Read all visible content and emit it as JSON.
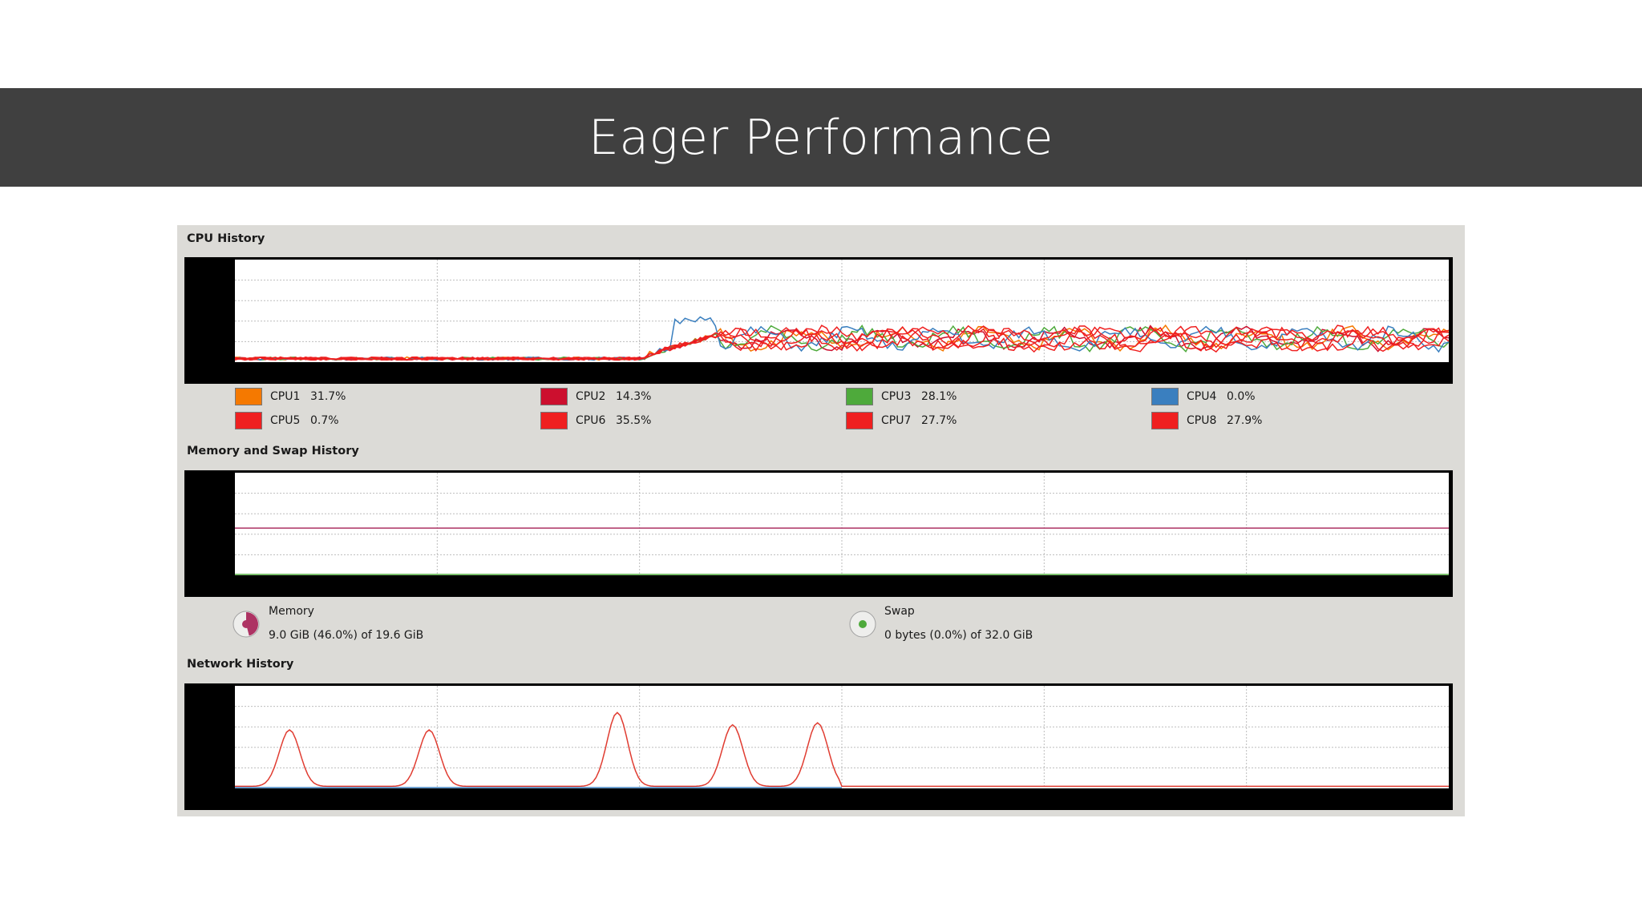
{
  "slide": {
    "title": "Eager Performance"
  },
  "cpu": {
    "section_label": "CPU History",
    "cores": [
      {
        "name": "CPU1",
        "value": "31.7%",
        "color": "#f57900"
      },
      {
        "name": "CPU2",
        "value": "14.3%",
        "color": "#cc0f2e"
      },
      {
        "name": "CPU3",
        "value": "28.1%",
        "color": "#4eaa3b"
      },
      {
        "name": "CPU4",
        "value": "0.0%",
        "color": "#3a7fbf"
      },
      {
        "name": "CPU5",
        "value": "0.7%",
        "color": "#ef2020"
      },
      {
        "name": "CPU6",
        "value": "35.5%",
        "color": "#ef2020"
      },
      {
        "name": "CPU7",
        "value": "27.7%",
        "color": "#ef2020"
      },
      {
        "name": "CPU8",
        "value": "27.9%",
        "color": "#ef2020"
      }
    ]
  },
  "memory": {
    "section_label": "Memory and Swap History",
    "memory_label": "Memory",
    "memory_value": "9.0 GiB (46.0%) of 19.6 GiB",
    "memory_fraction": 0.46,
    "memory_color": "#ad3363",
    "swap_label": "Swap",
    "swap_value": "0 bytes (0.0%) of 32.0 GiB",
    "swap_fraction": 0.0,
    "swap_color": "#4eaa3b"
  },
  "network": {
    "section_label": "Network History"
  }
}
